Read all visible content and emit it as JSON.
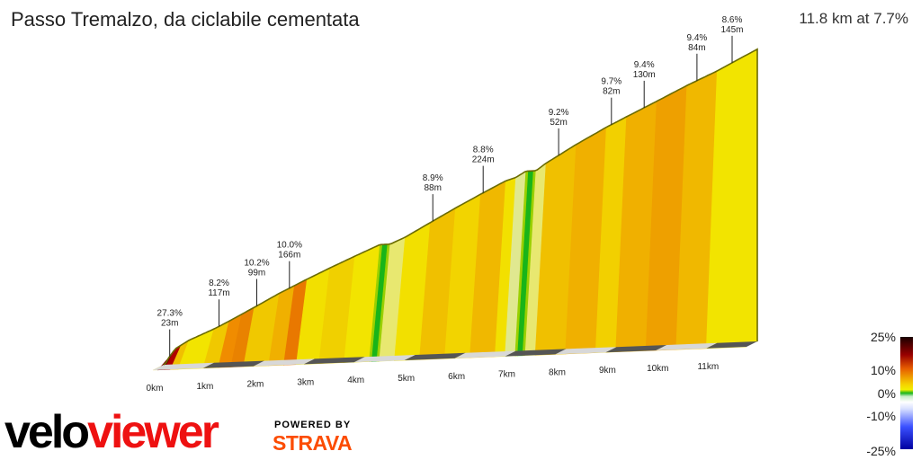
{
  "title": "Passo Tremalzo, da ciclabile cementata",
  "summary": "11.8 km at 7.7%",
  "chart_data": {
    "type": "area",
    "title": "Passo Tremalzo, da ciclabile cementata",
    "x_unit": "km",
    "xlim": [
      0,
      11.8
    ],
    "distance_labels": [
      "0km",
      "1km",
      "2km",
      "3km",
      "4km",
      "5km",
      "6km",
      "7km",
      "8km",
      "9km",
      "10km",
      "11km"
    ],
    "elevation_profile_fraction": {
      "km": [
        0,
        0.05,
        0.1,
        0.23,
        0.5,
        1.0,
        1.3,
        1.8,
        2.3,
        2.8,
        3.3,
        3.8,
        4.3,
        4.5,
        4.8,
        5.3,
        5.8,
        6.3,
        6.8,
        7.0,
        7.2,
        7.4,
        7.6,
        8.2,
        8.8,
        9.2,
        9.8,
        10.4,
        11.0,
        11.8
      ],
      "fraction": [
        0.0,
        0.009,
        0.028,
        0.063,
        0.095,
        0.137,
        0.166,
        0.218,
        0.271,
        0.319,
        0.365,
        0.409,
        0.452,
        0.452,
        0.478,
        0.533,
        0.588,
        0.64,
        0.69,
        0.702,
        0.726,
        0.726,
        0.755,
        0.826,
        0.891,
        0.93,
        0.988,
        1.047,
        1.101,
        1.183
      ]
    },
    "annotations": [
      {
        "grade": "27.3%",
        "length": "23m",
        "km": 0.12
      },
      {
        "grade": "8.2%",
        "length": "117m",
        "km": 1.1
      },
      {
        "grade": "10.2%",
        "length": "99m",
        "km": 1.85
      },
      {
        "grade": "10.0%",
        "length": "166m",
        "km": 2.5
      },
      {
        "grade": "8.9%",
        "length": "88m",
        "km": 5.35
      },
      {
        "grade": "8.8%",
        "length": "224m",
        "km": 6.35
      },
      {
        "grade": "9.2%",
        "length": "52m",
        "km": 7.85
      },
      {
        "grade": "9.7%",
        "length": "82m",
        "km": 8.9
      },
      {
        "grade": "9.4%",
        "length": "130m",
        "km": 9.55
      },
      {
        "grade": "9.4%",
        "length": "84m",
        "km": 10.6
      },
      {
        "grade": "8.6%",
        "length": "145m",
        "km": 11.3
      }
    ],
    "gradient_segments": [
      {
        "from": 0.0,
        "to": 0.1,
        "color": "#f0e8a0"
      },
      {
        "from": 0.1,
        "to": 0.23,
        "color": "#7a0000"
      },
      {
        "from": 0.23,
        "to": 0.35,
        "color": "#b00000"
      },
      {
        "from": 0.35,
        "to": 0.5,
        "color": "#f0c000"
      },
      {
        "from": 0.5,
        "to": 1.0,
        "color": "#f2e400"
      },
      {
        "from": 1.0,
        "to": 1.3,
        "color": "#f0c800"
      },
      {
        "from": 1.3,
        "to": 1.55,
        "color": "#f08c00"
      },
      {
        "from": 1.55,
        "to": 1.8,
        "color": "#e98200"
      },
      {
        "from": 1.8,
        "to": 2.3,
        "color": "#f0c800"
      },
      {
        "from": 2.3,
        "to": 2.6,
        "color": "#f0b000"
      },
      {
        "from": 2.6,
        "to": 2.85,
        "color": "#e97800"
      },
      {
        "from": 2.85,
        "to": 3.3,
        "color": "#f2e000"
      },
      {
        "from": 3.3,
        "to": 3.8,
        "color": "#f0d000"
      },
      {
        "from": 3.8,
        "to": 4.3,
        "color": "#f2e400"
      },
      {
        "from": 4.3,
        "to": 4.35,
        "color": "#9ad000"
      },
      {
        "from": 4.35,
        "to": 4.45,
        "color": "#19b419"
      },
      {
        "from": 4.45,
        "to": 4.5,
        "color": "#9ad000"
      },
      {
        "from": 4.5,
        "to": 4.8,
        "color": "#e8e870"
      },
      {
        "from": 4.8,
        "to": 5.3,
        "color": "#f2e000"
      },
      {
        "from": 5.3,
        "to": 5.8,
        "color": "#f0c000"
      },
      {
        "from": 5.8,
        "to": 6.3,
        "color": "#f2d400"
      },
      {
        "from": 6.3,
        "to": 6.8,
        "color": "#f0b800"
      },
      {
        "from": 6.8,
        "to": 7.0,
        "color": "#f2e000"
      },
      {
        "from": 7.0,
        "to": 7.2,
        "color": "#e0e890"
      },
      {
        "from": 7.2,
        "to": 7.25,
        "color": "#9ad000"
      },
      {
        "from": 7.25,
        "to": 7.35,
        "color": "#19b419"
      },
      {
        "from": 7.35,
        "to": 7.4,
        "color": "#9ad000"
      },
      {
        "from": 7.4,
        "to": 7.6,
        "color": "#e8e870"
      },
      {
        "from": 7.6,
        "to": 8.2,
        "color": "#f0c000"
      },
      {
        "from": 8.2,
        "to": 8.8,
        "color": "#f0b000"
      },
      {
        "from": 8.8,
        "to": 9.2,
        "color": "#f2d000"
      },
      {
        "from": 9.2,
        "to": 9.8,
        "color": "#f0b000"
      },
      {
        "from": 9.8,
        "to": 10.4,
        "color": "#eea000"
      },
      {
        "from": 10.4,
        "to": 11.0,
        "color": "#f0b800"
      },
      {
        "from": 11.0,
        "to": 11.8,
        "color": "#f2e400"
      }
    ],
    "legend_labels": [
      "25%",
      "10%",
      "0%",
      "-10%",
      "-25%"
    ]
  },
  "logo": {
    "part1": "velo",
    "part2": "viewer"
  },
  "powered_by": "POWERED BY",
  "strava": "STRAVA",
  "colors": {
    "velo": "#000000",
    "viewer": "#ee1111",
    "strava": "#fc4c02",
    "outline": "#7a7a00"
  }
}
